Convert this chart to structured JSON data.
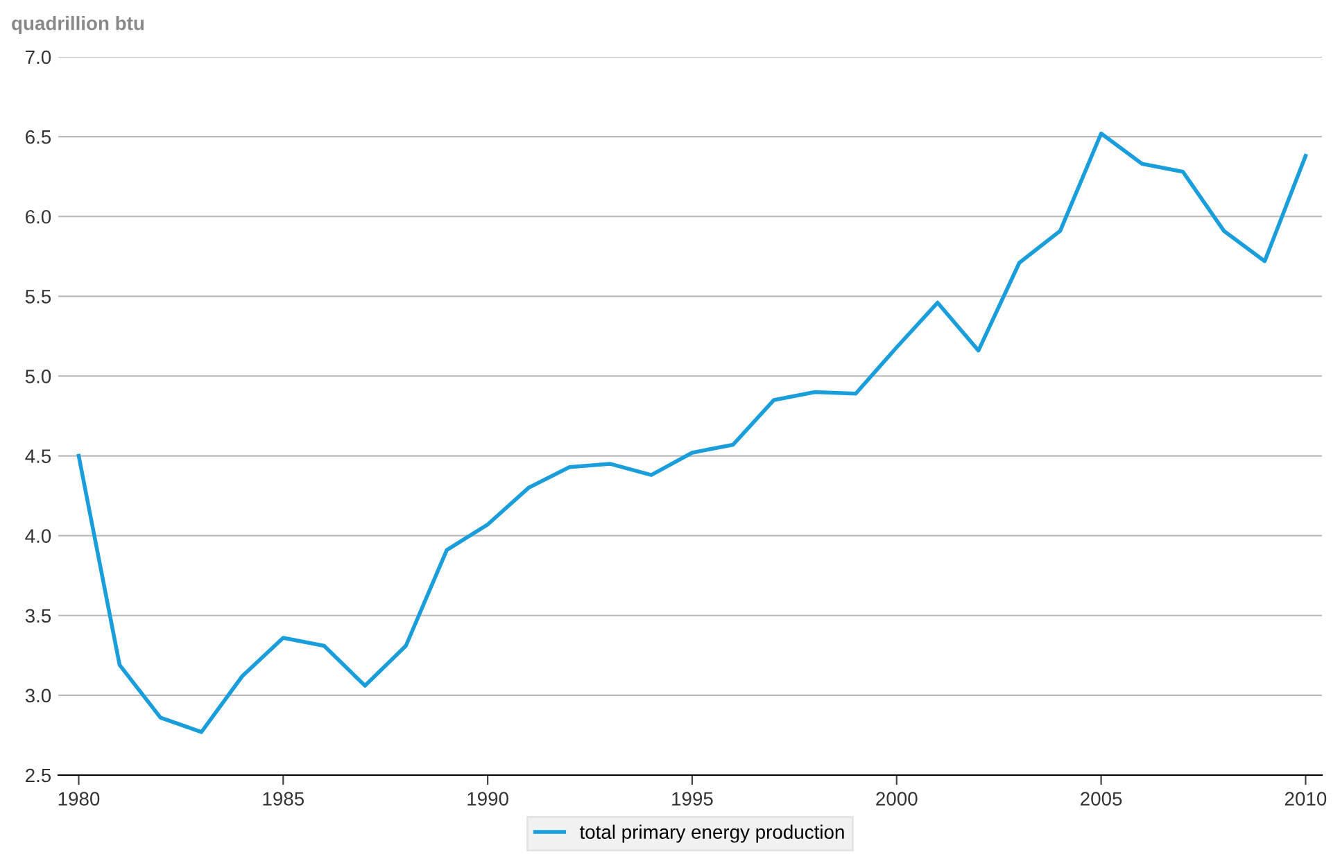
{
  "chart_data": {
    "type": "line",
    "ylabel": "quadrillion btu",
    "x": [
      1980,
      1981,
      1982,
      1983,
      1984,
      1985,
      1986,
      1987,
      1988,
      1989,
      1990,
      1991,
      1992,
      1993,
      1994,
      1995,
      1996,
      1997,
      1998,
      1999,
      2000,
      2001,
      2002,
      2003,
      2004,
      2005,
      2006,
      2007,
      2008,
      2009,
      2010
    ],
    "series": [
      {
        "name": "total primary energy production",
        "color": "#1a9ddb",
        "values": [
          4.5,
          3.19,
          2.86,
          2.77,
          3.12,
          3.36,
          3.31,
          3.06,
          3.31,
          3.91,
          4.07,
          4.3,
          4.43,
          4.45,
          4.38,
          4.52,
          4.57,
          4.85,
          4.9,
          4.89,
          5.18,
          5.46,
          5.16,
          5.71,
          5.91,
          6.52,
          6.33,
          6.28,
          5.91,
          5.72,
          6.38
        ]
      }
    ],
    "xlim": [
      1979.5,
      2010.4
    ],
    "xticks": [
      1980,
      1985,
      1990,
      1995,
      2000,
      2005,
      2010
    ],
    "ylim": [
      2.5,
      7.0
    ],
    "yticks": [
      {
        "value": 2.5,
        "label": "2.5"
      },
      {
        "value": 3.0,
        "label": "3.0"
      },
      {
        "value": 3.5,
        "label": "3.5"
      },
      {
        "value": 4.0,
        "label": "4.0"
      },
      {
        "value": 4.5,
        "label": "4.5"
      },
      {
        "value": 5.0,
        "label": "5.0"
      },
      {
        "value": 5.5,
        "label": "5.5"
      },
      {
        "value": 6.0,
        "label": "6.0"
      },
      {
        "value": 6.5,
        "label": "6.5"
      },
      {
        "value": 7.0,
        "label": "7.0"
      }
    ],
    "grid": "y",
    "legend": "bottom",
    "marker": "none",
    "line_style": "solid"
  }
}
